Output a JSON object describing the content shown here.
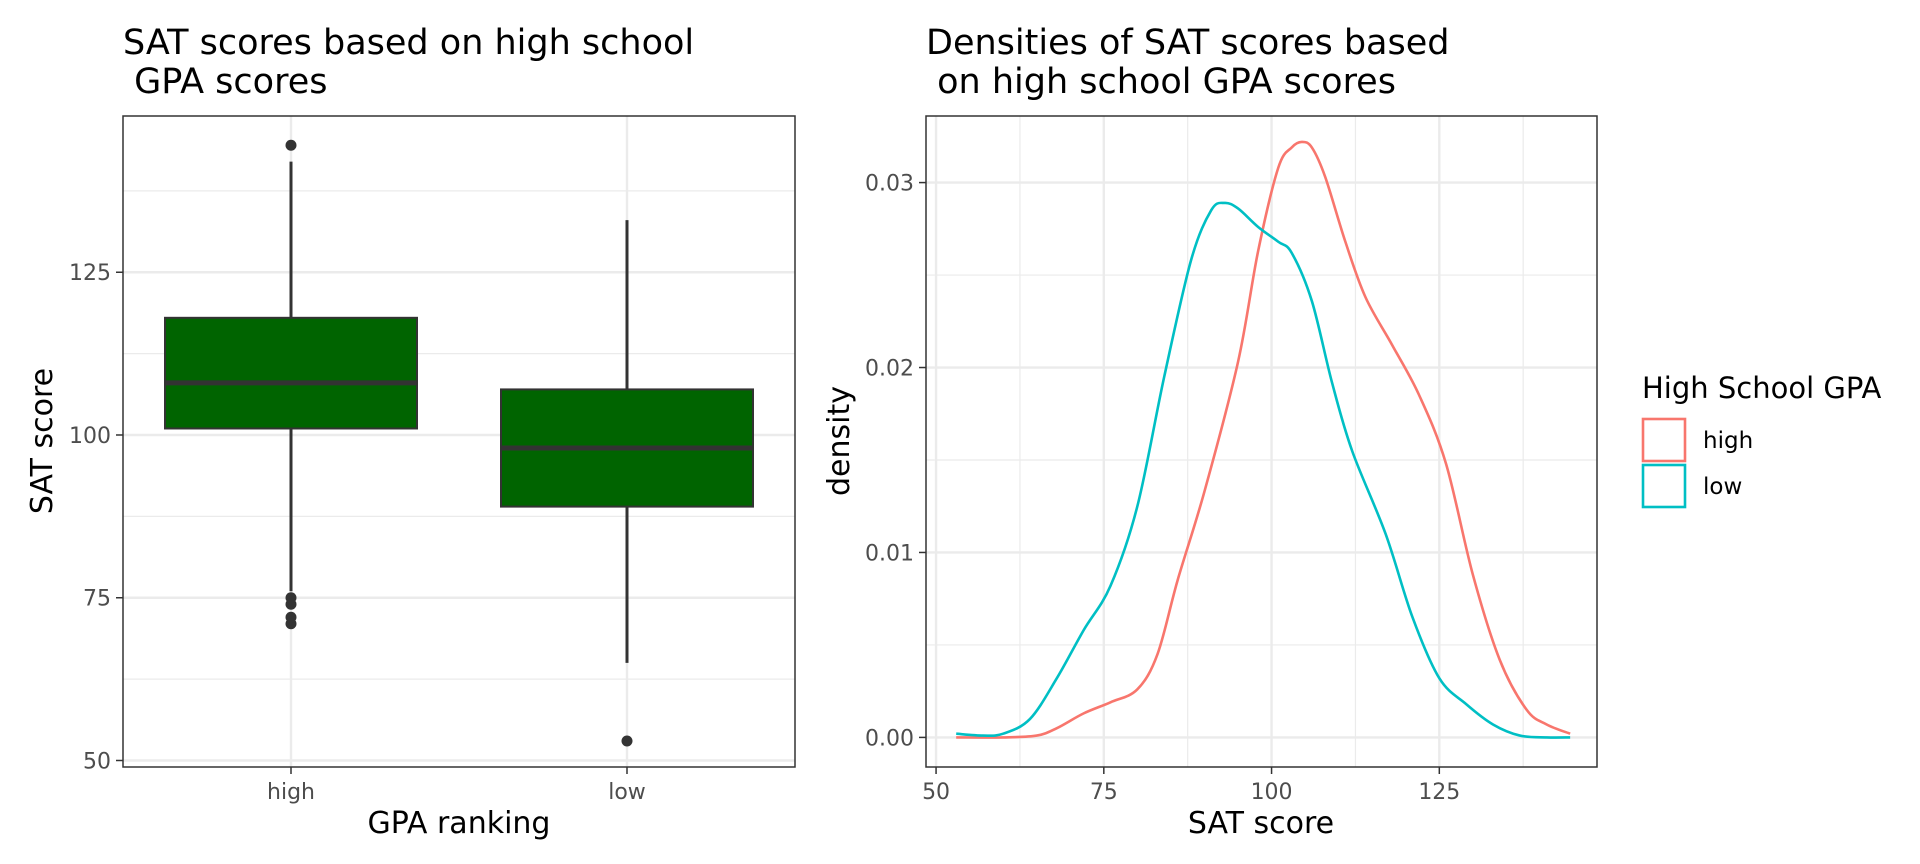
{
  "chart_data": [
    {
      "type": "box",
      "title": "SAT scores based on high school\n GPA scores",
      "xlabel": "GPA ranking",
      "ylabel": "SAT score",
      "categories": [
        "high",
        "low"
      ],
      "ylim": [
        49,
        149
      ],
      "yticks": [
        50,
        75,
        100,
        125
      ],
      "grid": true,
      "fill_color": "#006400",
      "boxes": [
        {
          "category": "high",
          "whisker_low": 76,
          "q1": 101,
          "median": 108,
          "q3": 118,
          "whisker_high": 142,
          "outliers": [
            71,
            72,
            74,
            75,
            144.5
          ]
        },
        {
          "category": "low",
          "whisker_low": 65,
          "q1": 89,
          "median": 98,
          "q3": 107,
          "whisker_high": 133,
          "outliers": [
            53
          ]
        }
      ]
    },
    {
      "type": "line",
      "title": "Densities of SAT scores based\n on high school GPA scores",
      "xlabel": "SAT score",
      "ylabel": "density",
      "xlim": [
        48.5,
        148.5
      ],
      "ylim": [
        -0.0016,
        0.0336
      ],
      "xticks": [
        50,
        75,
        100,
        125
      ],
      "yticks": [
        0.0,
        0.01,
        0.02,
        0.03
      ],
      "ytick_labels": [
        "0.00",
        "0.01",
        "0.02",
        "0.03"
      ],
      "grid": true,
      "legend": {
        "title": "High School GPA",
        "position": "right"
      },
      "series": [
        {
          "name": "high",
          "color": "#F8766D",
          "x": [
            53,
            60,
            65,
            68,
            72,
            76,
            80,
            83,
            86,
            90,
            95,
            98,
            101,
            103,
            104.5,
            106,
            108,
            111,
            114,
            118,
            122,
            126,
            130,
            134,
            138,
            141,
            144.5
          ],
          "y": [
            0.0,
            0.0,
            0.0001,
            0.0005,
            0.0013,
            0.0019,
            0.0026,
            0.0045,
            0.0085,
            0.0133,
            0.0203,
            0.0263,
            0.0308,
            0.0319,
            0.0322,
            0.0319,
            0.0303,
            0.0268,
            0.0238,
            0.0212,
            0.0185,
            0.0148,
            0.0088,
            0.0042,
            0.0015,
            0.0007,
            0.0002
          ]
        },
        {
          "name": "low",
          "color": "#00BFC4",
          "x": [
            53,
            57,
            60,
            64,
            68,
            72,
            76,
            80,
            84,
            88,
            91,
            93,
            95,
            98,
            101,
            103,
            106,
            109,
            112,
            117,
            121,
            125,
            129,
            133,
            137,
            141,
            144.5
          ],
          "y": [
            0.0002,
            0.0001,
            0.0002,
            0.001,
            0.0032,
            0.0058,
            0.0082,
            0.0125,
            0.0195,
            0.0258,
            0.0285,
            0.0289,
            0.0286,
            0.0276,
            0.0268,
            0.0262,
            0.0236,
            0.0192,
            0.0155,
            0.011,
            0.0065,
            0.0032,
            0.0018,
            0.0007,
            0.0001,
            0.0,
            0.0
          ]
        }
      ]
    }
  ]
}
